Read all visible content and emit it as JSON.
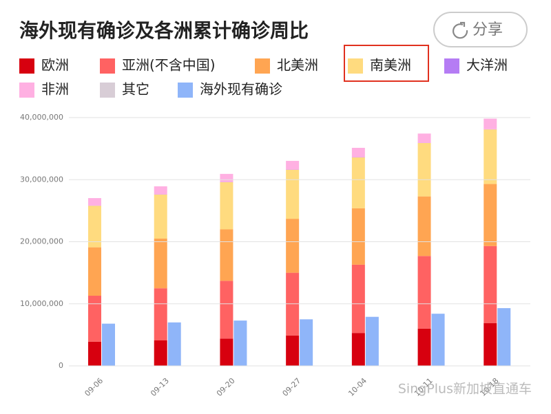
{
  "chart_data": {
    "type": "bar",
    "title": "海外现有确诊及各洲累计确诊周比",
    "share_button": "分享",
    "watermark": "SingPlus新加坡直通车",
    "categories": [
      "09-06",
      "09-13",
      "09-20",
      "09-27",
      "10-04",
      "10-11",
      "10-18"
    ],
    "series": [
      {
        "name": "欧洲",
        "color": "#d7000f",
        "stacked": true,
        "values": [
          3900000,
          4100000,
          4400000,
          4900000,
          5300000,
          6000000,
          6900000
        ]
      },
      {
        "name": "亚洲(不含中国)",
        "color": "#ff6262",
        "stacked": true,
        "values": [
          7400000,
          8400000,
          9300000,
          10100000,
          11000000,
          11700000,
          12400000
        ]
      },
      {
        "name": "北美洲",
        "color": "#ffa552",
        "stacked": true,
        "values": [
          7800000,
          8000000,
          8300000,
          8700000,
          9100000,
          9600000,
          10000000
        ]
      },
      {
        "name": "南美洲",
        "color": "#ffdb7f",
        "stacked": true,
        "values": [
          6700000,
          7100000,
          7600000,
          7900000,
          8200000,
          8600000,
          8800000
        ]
      },
      {
        "name": "大洋洲",
        "color": "#b57cf4",
        "stacked": true,
        "values": [
          30000,
          30000,
          30000,
          30000,
          30000,
          30000,
          30000
        ]
      },
      {
        "name": "非洲",
        "color": "#ffb0e2",
        "stacked": true,
        "values": [
          1200000,
          1300000,
          1300000,
          1400000,
          1500000,
          1500000,
          1700000
        ]
      },
      {
        "name": "其它",
        "color": "#d8cdd6",
        "stacked": true,
        "values": [
          1000,
          1000,
          1000,
          1000,
          1000,
          1000,
          1000
        ]
      },
      {
        "name": "海外现有确诊",
        "color": "#8fb5f9",
        "stacked": false,
        "values": [
          6800000,
          7000000,
          7300000,
          7500000,
          7900000,
          8400000,
          9300000
        ]
      }
    ],
    "ylim": [
      0,
      40000000
    ],
    "yticks": [
      0,
      {
        "value": 10000000,
        "label": "10,000,000"
      },
      {
        "value": 20000000,
        "label": "20,000,000"
      },
      {
        "value": 30000000,
        "label": "30,000,000"
      },
      {
        "value": 40000000,
        "label": "40,000,000"
      }
    ],
    "grid": true
  }
}
